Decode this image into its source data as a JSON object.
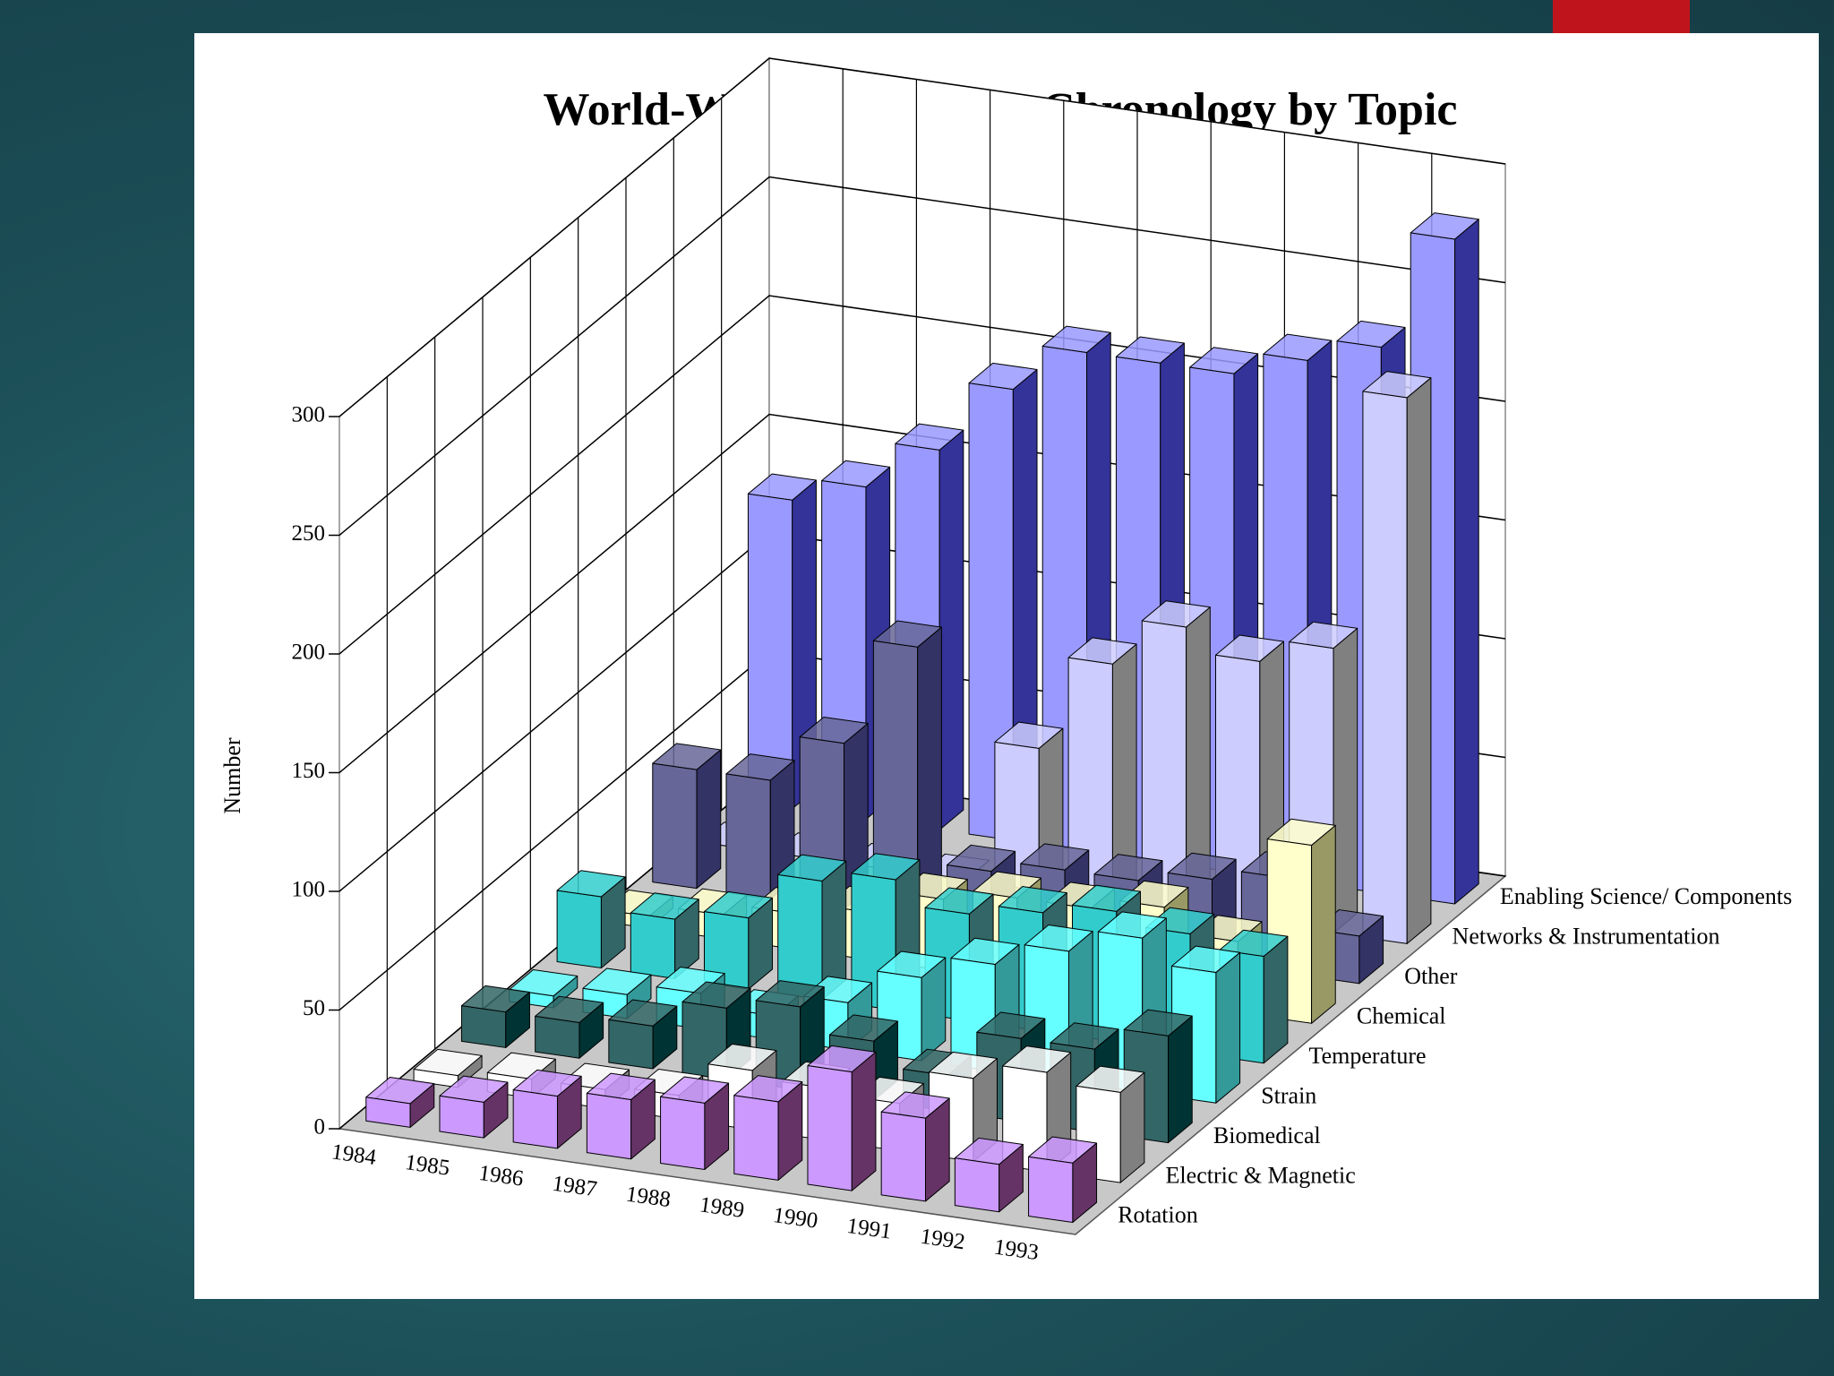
{
  "chart_data": {
    "type": "bar3d",
    "title": "World-Wide Publication Chronology by Topic",
    "y_label": "Number",
    "categories": [
      "1984",
      "1985",
      "1986",
      "1987",
      "1988",
      "1989",
      "1990",
      "1991",
      "1992",
      "1993"
    ],
    "ylim": [
      0,
      300
    ],
    "yticks": [
      0,
      50,
      100,
      150,
      200,
      250,
      300
    ],
    "grid": true,
    "series": [
      {
        "name": "Rotation",
        "color": "#cc99ff",
        "shade_color": "#663366",
        "values": [
          10,
          15,
          22,
          25,
          28,
          33,
          50,
          35,
          20,
          25
        ]
      },
      {
        "name": "Electric & Magnetic",
        "color": "#ffffff",
        "shade_color": "#808080",
        "values": [
          5,
          8,
          8,
          10,
          25,
          22,
          20,
          35,
          42,
          38
        ]
      },
      {
        "name": "Biomedical",
        "color": "#336666",
        "shade_color": "#003333",
        "values": [
          15,
          15,
          18,
          30,
          35,
          25,
          15,
          35,
          35,
          45
        ]
      },
      {
        "name": "Strain",
        "color": "#66ffff",
        "shade_color": "#339999",
        "values": [
          5,
          10,
          15,
          10,
          20,
          35,
          45,
          55,
          65,
          55
        ]
      },
      {
        "name": "Temperature",
        "color": "#33cccc",
        "shade_color": "#336666",
        "values": [
          30,
          25,
          30,
          50,
          55,
          45,
          50,
          55,
          50,
          45
        ]
      },
      {
        "name": "Chemical",
        "color": "#ffffcc",
        "shade_color": "#999966",
        "values": [
          5,
          10,
          15,
          20,
          30,
          35,
          35,
          40,
          30,
          75
        ]
      },
      {
        "name": "Other",
        "color": "#666699",
        "shade_color": "#333366",
        "values": [
          50,
          50,
          70,
          115,
          25,
          30,
          30,
          35,
          40,
          20
        ]
      },
      {
        "name": "Networks & Instrumentation",
        "color": "#ccccff",
        "shade_color": "#808080",
        "values": [
          0,
          0,
          0,
          0,
          60,
          100,
          120,
          110,
          120,
          230
        ]
      },
      {
        "name": "Enabling Science/ Components",
        "color": "#9999ff",
        "shade_color": "#333399",
        "values": [
          130,
          140,
          160,
          190,
          210,
          210,
          210,
          220,
          230,
          280
        ]
      }
    ]
  }
}
